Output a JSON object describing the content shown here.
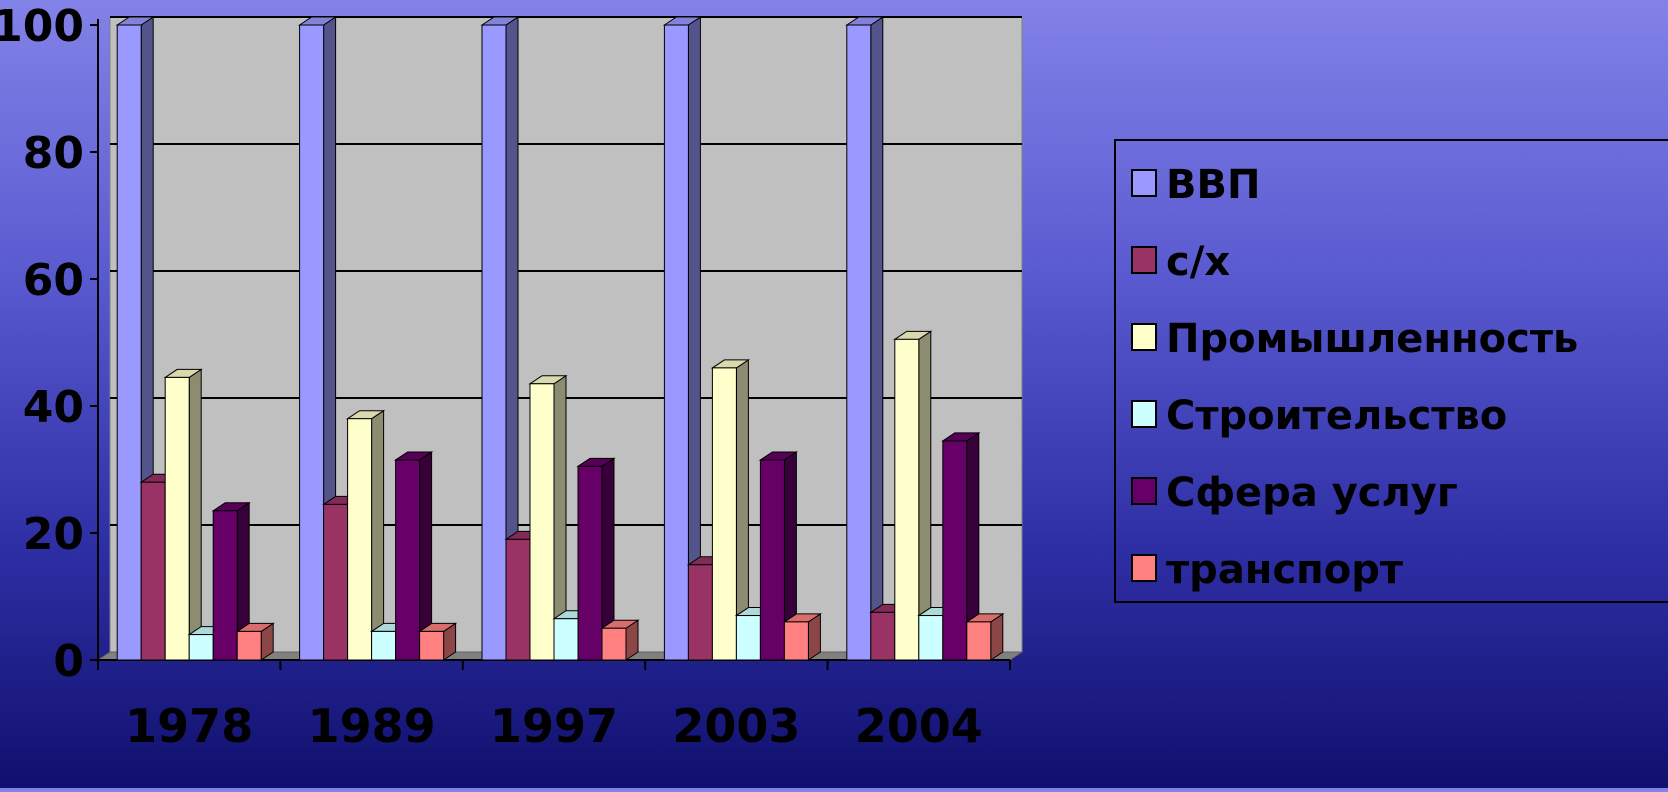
{
  "chart_data": {
    "type": "bar",
    "title": "",
    "xlabel": "",
    "ylabel": "",
    "categories": [
      "1978",
      "1989",
      "1997",
      "2003",
      "2004"
    ],
    "ylim": [
      0,
      100
    ],
    "yticks": [
      "0",
      "20",
      "40",
      "60",
      "80",
      "100"
    ],
    "grid": true,
    "legend_position": "right",
    "series": [
      {
        "name": "ВВП",
        "color": "#9999ff",
        "values": [
          100,
          100,
          100,
          100,
          100
        ]
      },
      {
        "name": "с/х",
        "color": "#993366",
        "values": [
          28,
          24.5,
          19,
          15,
          7.5
        ]
      },
      {
        "name": "Промышленность",
        "color": "#ffffcc",
        "values": [
          44.5,
          38,
          43.5,
          46,
          50.5
        ]
      },
      {
        "name": "Строительство",
        "color": "#ccffff",
        "values": [
          4,
          4.5,
          6.5,
          7,
          7
        ]
      },
      {
        "name": "Сфера услуг",
        "color": "#660066",
        "values": [
          23.5,
          31.5,
          30.5,
          31.5,
          34.5
        ]
      },
      {
        "name": "транспорт",
        "color": "#ff8080",
        "values": [
          4.5,
          4.5,
          5,
          6,
          6
        ]
      }
    ]
  }
}
